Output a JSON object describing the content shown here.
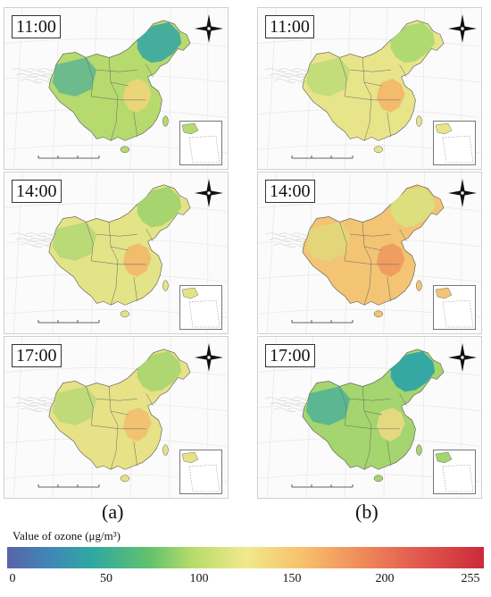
{
  "panels": [
    {
      "time": "11:00"
    },
    {
      "time": "11:00"
    },
    {
      "time": "14:00"
    },
    {
      "time": "14:00"
    },
    {
      "time": "17:00"
    },
    {
      "time": "17:00"
    }
  ],
  "column_labels": [
    "(a)",
    "(b)"
  ],
  "legend": {
    "title": "Value of ozone (μg/m³)",
    "ticks": [
      "0",
      "50",
      "100",
      "150",
      "200",
      "255"
    ],
    "tick_values": [
      0,
      50,
      100,
      150,
      200,
      255
    ],
    "min": 0,
    "max": 255,
    "colors": [
      "#5a63a8",
      "#2fa9a0",
      "#63c26b",
      "#f1e98c",
      "#f08c5a",
      "#cc2a3a"
    ]
  },
  "map_style": {
    "panel_fills": [
      [
        "#3aa7a2",
        "#b6da6e",
        "#edd679"
      ],
      [
        "#a9d86f",
        "#e8e48a",
        "#f3b86a"
      ],
      [
        "#9fd26d",
        "#e3e387",
        "#f2b96b"
      ],
      [
        "#d9e27e",
        "#f2c474",
        "#ef9b5f"
      ],
      [
        "#a7d66f",
        "#e7e187",
        "#f1c071"
      ],
      [
        "#2aa3a8",
        "#a4d56e",
        "#e8d982"
      ]
    ]
  }
}
